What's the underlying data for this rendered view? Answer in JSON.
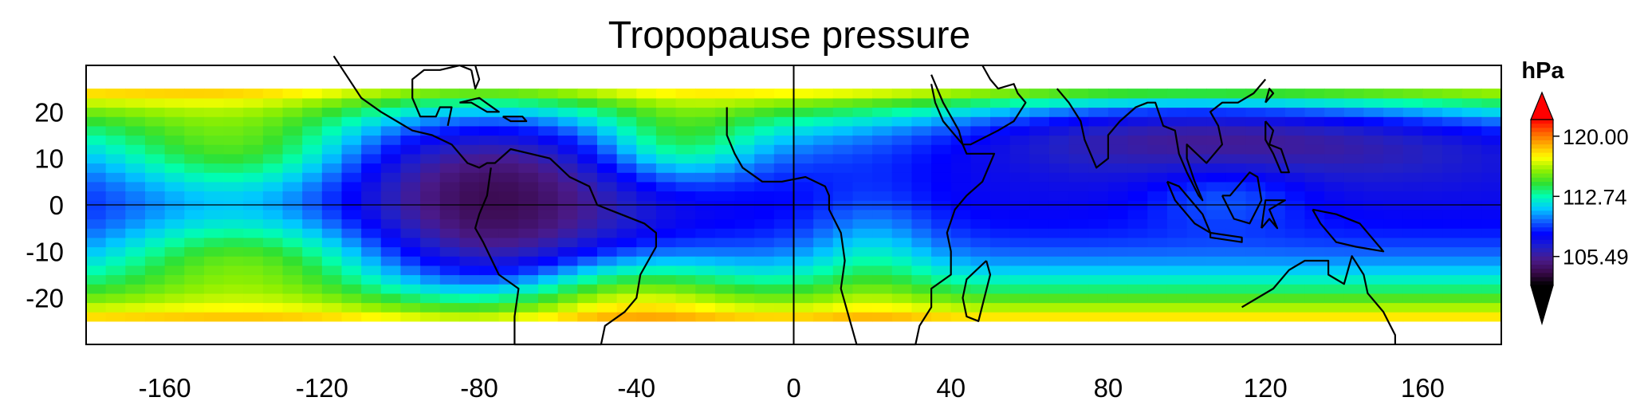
{
  "chart_data": {
    "type": "heatmap",
    "title": "Tropopause pressure",
    "xlabel": "",
    "ylabel": "",
    "x_ticks": [
      -160,
      -120,
      -80,
      -40,
      0,
      40,
      80,
      120,
      160
    ],
    "y_ticks": [
      20,
      10,
      0,
      -10,
      -20
    ],
    "xlim": [
      -180,
      180
    ],
    "ylim": [
      -30,
      30
    ],
    "colorbar": {
      "unit": "hPa",
      "ticks": [
        "120.00",
        "112.74",
        "105.49"
      ],
      "range": [
        102,
        122
      ],
      "colors": [
        "#000000",
        "#3a0a4a",
        "#4a1a8a",
        "#2020c8",
        "#0000ff",
        "#1060ff",
        "#00c8ff",
        "#00ffb0",
        "#30e030",
        "#90f000",
        "#ffff00",
        "#ffb000",
        "#ff6000",
        "#ff0000"
      ]
    },
    "reference_lines": {
      "equator_y": 0,
      "meridian_x": 0
    },
    "field_description_grid": "pressure sampled on a 5-degree lon x 2-degree lat grid over +/-25 deg latitude; low pressure (~104 hPa) over the western Pacific/Asia and tropical Americas, high pressure (~120 hPa) at the subtropical edges",
    "lat_band": [
      -25,
      25
    ]
  }
}
